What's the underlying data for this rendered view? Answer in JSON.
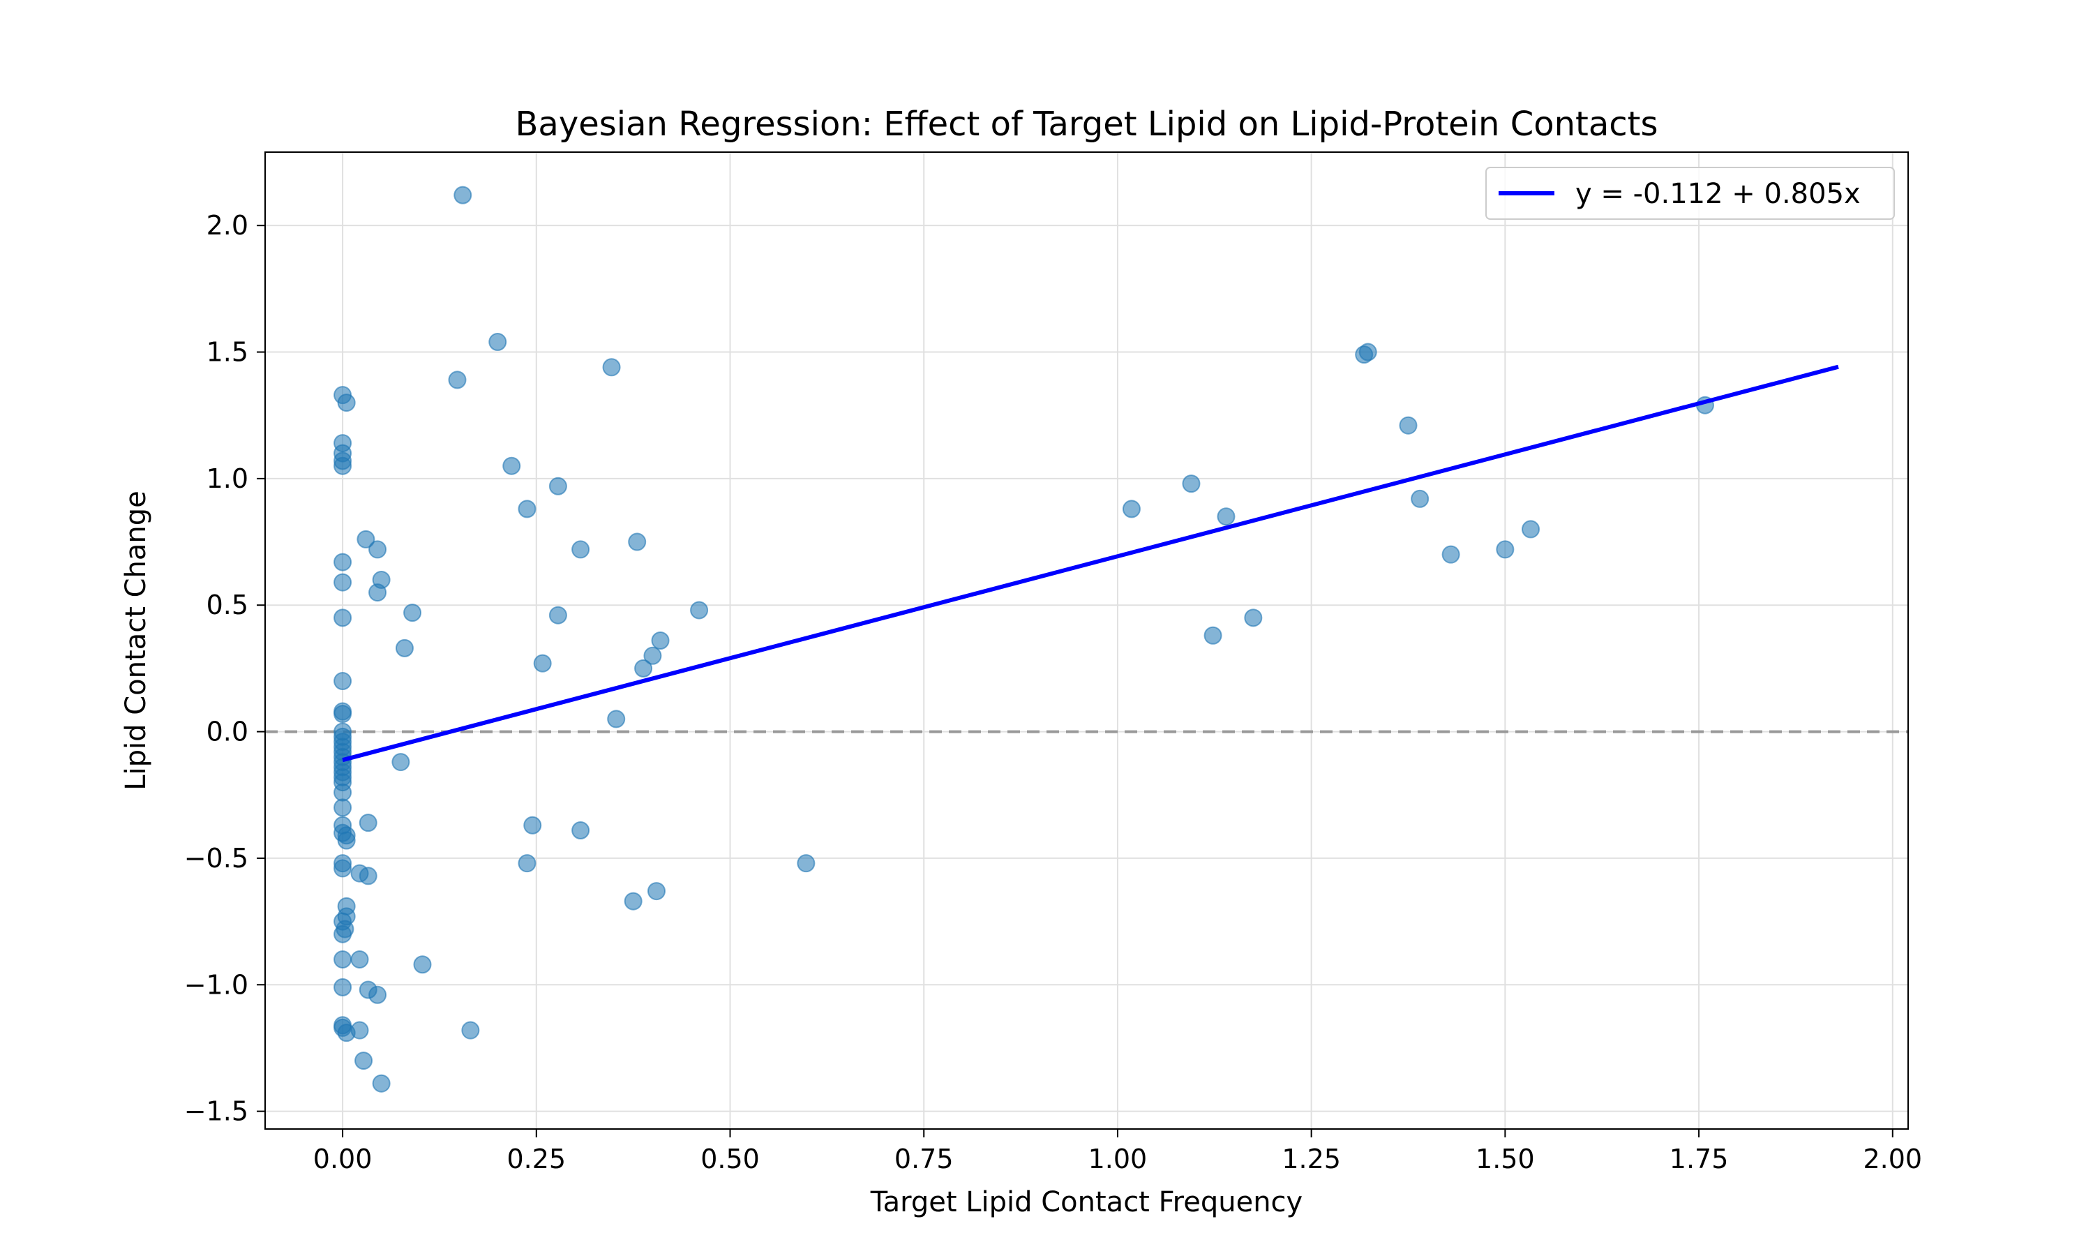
{
  "chart_data": {
    "type": "scatter",
    "title": "Bayesian Regression: Effect of Target Lipid on Lipid-Protein Contacts",
    "xlabel": "Target Lipid Contact Frequency",
    "ylabel": "Lipid Contact Change",
    "xlim": [
      -0.1,
      2.02
    ],
    "ylim": [
      -1.57,
      2.29
    ],
    "xticks": [
      0.0,
      0.25,
      0.5,
      0.75,
      1.0,
      1.25,
      1.5,
      1.75,
      2.0
    ],
    "xtick_labels": [
      "0.00",
      "0.25",
      "0.50",
      "0.75",
      "1.00",
      "1.25",
      "1.50",
      "1.75",
      "2.00"
    ],
    "yticks": [
      -1.5,
      -1.0,
      -0.5,
      0.0,
      0.5,
      1.0,
      1.5,
      2.0
    ],
    "ytick_labels": [
      "−1.5",
      "−1.0",
      "−0.5",
      "0.0",
      "0.5",
      "1.0",
      "1.5",
      "2.0"
    ],
    "grid": true,
    "legend_position": "top-right",
    "colors": {
      "points": "#1f77b4",
      "fit": "#0000ff",
      "reference": "#999999",
      "grid": "#e0e0e0"
    },
    "reference_line": {
      "y": 0.0,
      "style": "dashed"
    },
    "fit_line": {
      "name": "y = -0.112 + 0.805x",
      "intercept": -0.112,
      "slope": 0.805,
      "x_range": [
        0.0,
        1.93
      ]
    },
    "points": [
      {
        "x": 0.0,
        "y": 1.33
      },
      {
        "x": 0.005,
        "y": 1.3
      },
      {
        "x": 0.0,
        "y": 1.14
      },
      {
        "x": 0.0,
        "y": 1.1
      },
      {
        "x": 0.0,
        "y": 1.07
      },
      {
        "x": 0.0,
        "y": 1.05
      },
      {
        "x": 0.0,
        "y": 0.67
      },
      {
        "x": 0.0,
        "y": 0.59
      },
      {
        "x": 0.0,
        "y": 0.45
      },
      {
        "x": 0.0,
        "y": 0.2
      },
      {
        "x": 0.0,
        "y": 0.08
      },
      {
        "x": 0.0,
        "y": 0.07
      },
      {
        "x": 0.0,
        "y": 0.0
      },
      {
        "x": 0.0,
        "y": -0.02
      },
      {
        "x": 0.0,
        "y": -0.04
      },
      {
        "x": 0.0,
        "y": -0.06
      },
      {
        "x": 0.0,
        "y": -0.08
      },
      {
        "x": 0.0,
        "y": -0.1
      },
      {
        "x": 0.0,
        "y": -0.12
      },
      {
        "x": 0.0,
        "y": -0.14
      },
      {
        "x": 0.0,
        "y": -0.16
      },
      {
        "x": 0.0,
        "y": -0.18
      },
      {
        "x": 0.0,
        "y": -0.2
      },
      {
        "x": 0.0,
        "y": -0.24
      },
      {
        "x": 0.0,
        "y": -0.3
      },
      {
        "x": 0.0,
        "y": -0.37
      },
      {
        "x": 0.0,
        "y": -0.4
      },
      {
        "x": 0.005,
        "y": -0.41
      },
      {
        "x": 0.005,
        "y": -0.43
      },
      {
        "x": 0.0,
        "y": -0.52
      },
      {
        "x": 0.0,
        "y": -0.54
      },
      {
        "x": 0.005,
        "y": -0.69
      },
      {
        "x": 0.005,
        "y": -0.73
      },
      {
        "x": 0.0,
        "y": -0.75
      },
      {
        "x": 0.003,
        "y": -0.78
      },
      {
        "x": 0.0,
        "y": -0.8
      },
      {
        "x": 0.0,
        "y": -0.9
      },
      {
        "x": 0.0,
        "y": -1.01
      },
      {
        "x": 0.0,
        "y": -1.16
      },
      {
        "x": 0.0,
        "y": -1.17
      },
      {
        "x": 0.005,
        "y": -1.19
      },
      {
        "x": 0.03,
        "y": 0.76
      },
      {
        "x": 0.045,
        "y": 0.72
      },
      {
        "x": 0.05,
        "y": 0.6
      },
      {
        "x": 0.045,
        "y": 0.55
      },
      {
        "x": 0.09,
        "y": 0.47
      },
      {
        "x": 0.08,
        "y": 0.33
      },
      {
        "x": 0.075,
        "y": -0.12
      },
      {
        "x": 0.033,
        "y": -0.36
      },
      {
        "x": 0.022,
        "y": -0.56
      },
      {
        "x": 0.033,
        "y": -0.57
      },
      {
        "x": 0.022,
        "y": -0.9
      },
      {
        "x": 0.033,
        "y": -1.02
      },
      {
        "x": 0.045,
        "y": -1.04
      },
      {
        "x": 0.022,
        "y": -1.18
      },
      {
        "x": 0.027,
        "y": -1.3
      },
      {
        "x": 0.05,
        "y": -1.39
      },
      {
        "x": 0.103,
        "y": -0.92
      },
      {
        "x": 0.155,
        "y": 2.12
      },
      {
        "x": 0.2,
        "y": 1.54
      },
      {
        "x": 0.148,
        "y": 1.39
      },
      {
        "x": 0.218,
        "y": 1.05
      },
      {
        "x": 0.238,
        "y": 0.88
      },
      {
        "x": 0.278,
        "y": 0.97
      },
      {
        "x": 0.347,
        "y": 1.44
      },
      {
        "x": 0.307,
        "y": 0.72
      },
      {
        "x": 0.38,
        "y": 0.75
      },
      {
        "x": 0.278,
        "y": 0.46
      },
      {
        "x": 0.46,
        "y": 0.48
      },
      {
        "x": 0.41,
        "y": 0.36
      },
      {
        "x": 0.4,
        "y": 0.3
      },
      {
        "x": 0.258,
        "y": 0.27
      },
      {
        "x": 0.388,
        "y": 0.25
      },
      {
        "x": 0.353,
        "y": 0.05
      },
      {
        "x": 0.245,
        "y": -0.37
      },
      {
        "x": 0.307,
        "y": -0.39
      },
      {
        "x": 0.238,
        "y": -0.52
      },
      {
        "x": 0.598,
        "y": -0.52
      },
      {
        "x": 0.405,
        "y": -0.63
      },
      {
        "x": 0.375,
        "y": -0.67
      },
      {
        "x": 0.165,
        "y": -1.18
      },
      {
        "x": 1.018,
        "y": 0.88
      },
      {
        "x": 1.095,
        "y": 0.98
      },
      {
        "x": 1.14,
        "y": 0.85
      },
      {
        "x": 1.123,
        "y": 0.38
      },
      {
        "x": 1.175,
        "y": 0.45
      },
      {
        "x": 1.318,
        "y": 1.49
      },
      {
        "x": 1.323,
        "y": 1.5
      },
      {
        "x": 1.375,
        "y": 1.21
      },
      {
        "x": 1.39,
        "y": 0.92
      },
      {
        "x": 1.43,
        "y": 0.7
      },
      {
        "x": 1.5,
        "y": 0.72
      },
      {
        "x": 1.533,
        "y": 0.8
      },
      {
        "x": 1.758,
        "y": 1.29
      }
    ]
  }
}
